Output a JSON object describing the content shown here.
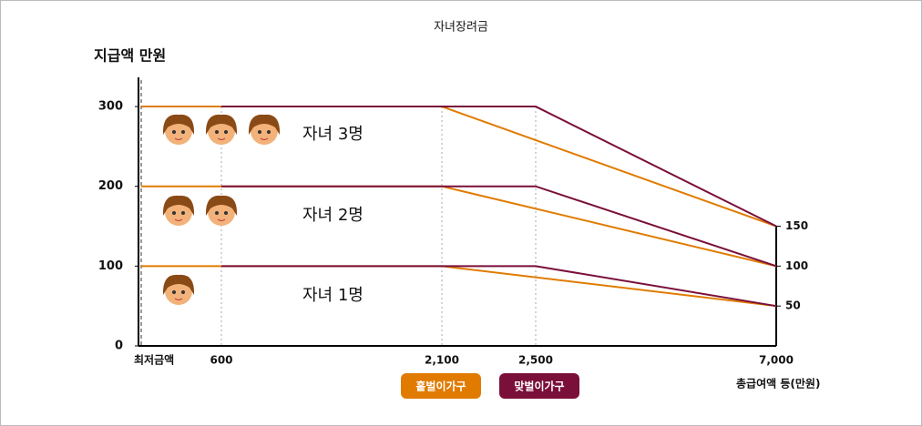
{
  "chart_data": {
    "type": "line",
    "title": "자녀장려금",
    "y_label": "지급액 만원",
    "x_label": "총급여액 등(만원)",
    "xticks": [
      {
        "value": 0,
        "label": "최저금액"
      },
      600,
      {
        "value": 2100,
        "label": "2,100"
      },
      {
        "value": 2500,
        "label": "2,500"
      },
      {
        "value": 7000,
        "label": "7,000"
      }
    ],
    "ylim": [
      0,
      340
    ],
    "yticks": [
      0,
      100,
      200,
      300
    ],
    "y2lim": [
      0,
      340
    ],
    "y2ticks": [
      50,
      100,
      150
    ],
    "annotations": [
      "자녀 1명",
      "자녀 2명",
      "자녀 3명"
    ],
    "series": [
      {
        "name": "홑벌이가구",
        "color": "#e07b00",
        "x": [
          0,
          2100,
          7000
        ],
        "lines": [
          [
            100,
            100,
            50
          ],
          [
            200,
            200,
            100
          ],
          [
            300,
            300,
            150
          ]
        ]
      },
      {
        "name": "맞벌이가구",
        "color": "#7a0f3a",
        "x": [
          600,
          2500,
          7000
        ],
        "lines": [
          [
            100,
            100,
            50
          ],
          [
            200,
            200,
            100
          ],
          [
            300,
            300,
            150
          ]
        ]
      }
    ]
  }
}
